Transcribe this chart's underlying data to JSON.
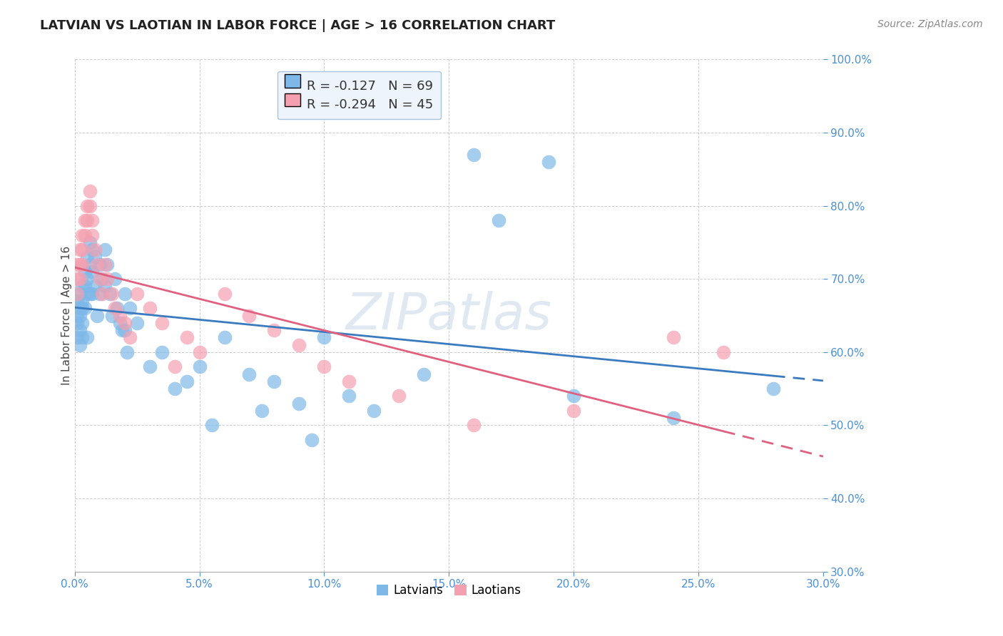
{
  "title": "LATVIAN VS LAOTIAN IN LABOR FORCE | AGE > 16 CORRELATION CHART",
  "source_text": "Source: ZipAtlas.com",
  "xlabel": "",
  "ylabel": "In Labor Force | Age > 16",
  "xlim": [
    0.0,
    0.3
  ],
  "ylim": [
    0.3,
    1.0
  ],
  "xticks": [
    0.0,
    0.05,
    0.1,
    0.15,
    0.2,
    0.25,
    0.3
  ],
  "yticks": [
    0.3,
    0.4,
    0.5,
    0.6,
    0.7,
    0.8,
    0.9,
    1.0
  ],
  "ytick_labels": [
    "30.0%",
    "40.0%",
    "50.0%",
    "60.0%",
    "70.0%",
    "80.0%",
    "90.0%",
    "100.0%"
  ],
  "xtick_labels": [
    "0.0%",
    "5.0%",
    "10.0%",
    "15.0%",
    "20.0%",
    "25.0%",
    "30.0%"
  ],
  "background_color": "#ffffff",
  "grid_color": "#cccccc",
  "latvian_color": "#7eb8e8",
  "laotian_color": "#f4a0b0",
  "latvian_R": -0.127,
  "latvian_N": 69,
  "laotian_R": -0.294,
  "laotian_N": 45,
  "legend_box_color": "#e8f0f8",
  "watermark": "ZIPatlas",
  "latvians_x": [
    0.001,
    0.001,
    0.001,
    0.001,
    0.002,
    0.002,
    0.002,
    0.002,
    0.002,
    0.003,
    0.003,
    0.003,
    0.003,
    0.003,
    0.004,
    0.004,
    0.004,
    0.005,
    0.005,
    0.005,
    0.005,
    0.006,
    0.006,
    0.006,
    0.007,
    0.007,
    0.007,
    0.008,
    0.008,
    0.009,
    0.01,
    0.01,
    0.011,
    0.012,
    0.012,
    0.013,
    0.014,
    0.015,
    0.016,
    0.017,
    0.018,
    0.019,
    0.02,
    0.02,
    0.021,
    0.022,
    0.025,
    0.03,
    0.035,
    0.04,
    0.045,
    0.05,
    0.055,
    0.06,
    0.07,
    0.075,
    0.08,
    0.09,
    0.095,
    0.1,
    0.11,
    0.12,
    0.14,
    0.16,
    0.17,
    0.19,
    0.2,
    0.24,
    0.28
  ],
  "latvians_y": [
    0.67,
    0.65,
    0.64,
    0.62,
    0.68,
    0.66,
    0.65,
    0.63,
    0.61,
    0.69,
    0.67,
    0.66,
    0.64,
    0.62,
    0.71,
    0.69,
    0.66,
    0.73,
    0.7,
    0.68,
    0.62,
    0.75,
    0.72,
    0.68,
    0.74,
    0.71,
    0.68,
    0.73,
    0.69,
    0.65,
    0.72,
    0.68,
    0.7,
    0.74,
    0.69,
    0.72,
    0.68,
    0.65,
    0.7,
    0.66,
    0.64,
    0.63,
    0.68,
    0.63,
    0.6,
    0.66,
    0.64,
    0.58,
    0.6,
    0.55,
    0.56,
    0.58,
    0.5,
    0.62,
    0.57,
    0.52,
    0.56,
    0.53,
    0.48,
    0.62,
    0.54,
    0.52,
    0.57,
    0.87,
    0.78,
    0.86,
    0.54,
    0.51,
    0.55
  ],
  "laotians_x": [
    0.001,
    0.001,
    0.001,
    0.002,
    0.002,
    0.002,
    0.003,
    0.003,
    0.003,
    0.004,
    0.004,
    0.005,
    0.005,
    0.006,
    0.006,
    0.007,
    0.007,
    0.008,
    0.009,
    0.01,
    0.011,
    0.012,
    0.013,
    0.015,
    0.016,
    0.018,
    0.02,
    0.022,
    0.025,
    0.03,
    0.035,
    0.04,
    0.045,
    0.05,
    0.06,
    0.07,
    0.08,
    0.09,
    0.1,
    0.11,
    0.13,
    0.16,
    0.2,
    0.24,
    0.26
  ],
  "laotians_y": [
    0.72,
    0.7,
    0.68,
    0.74,
    0.72,
    0.7,
    0.76,
    0.74,
    0.72,
    0.78,
    0.76,
    0.8,
    0.78,
    0.82,
    0.8,
    0.78,
    0.76,
    0.74,
    0.72,
    0.7,
    0.68,
    0.72,
    0.7,
    0.68,
    0.66,
    0.65,
    0.64,
    0.62,
    0.68,
    0.66,
    0.64,
    0.58,
    0.62,
    0.6,
    0.68,
    0.65,
    0.63,
    0.61,
    0.58,
    0.56,
    0.54,
    0.5,
    0.52,
    0.62,
    0.6
  ]
}
